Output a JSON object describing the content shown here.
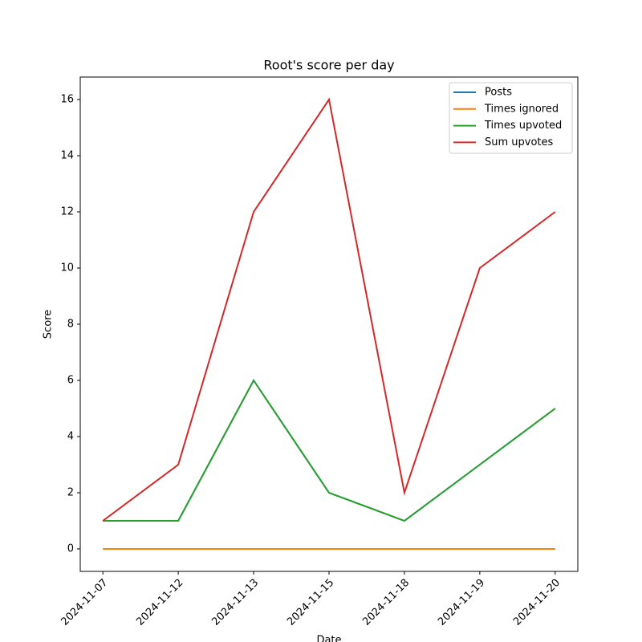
{
  "chart_data": {
    "type": "line",
    "title": "Root's score per day",
    "xlabel": "Date",
    "ylabel": "Score",
    "categories": [
      "2024-11-07",
      "2024-11-12",
      "2024-11-13",
      "2024-11-15",
      "2024-11-18",
      "2024-11-19",
      "2024-11-20"
    ],
    "series": [
      {
        "name": "Posts",
        "color": "#1f77b4",
        "values": [
          1,
          1,
          6,
          2,
          1,
          3,
          5
        ]
      },
      {
        "name": "Times ignored",
        "color": "#ff7f0e",
        "values": [
          0,
          0,
          0,
          0,
          0,
          0,
          0
        ]
      },
      {
        "name": "Times upvoted",
        "color": "#2ca02c",
        "values": [
          1,
          1,
          6,
          2,
          1,
          3,
          5
        ]
      },
      {
        "name": "Sum upvotes",
        "color": "#d62728",
        "values": [
          1,
          3,
          12,
          16,
          2,
          10,
          12
        ]
      }
    ],
    "ylim": [
      -0.8,
      16.8
    ],
    "yticks": [
      0,
      2,
      4,
      6,
      8,
      10,
      12,
      14,
      16
    ],
    "legend": "upper right"
  }
}
